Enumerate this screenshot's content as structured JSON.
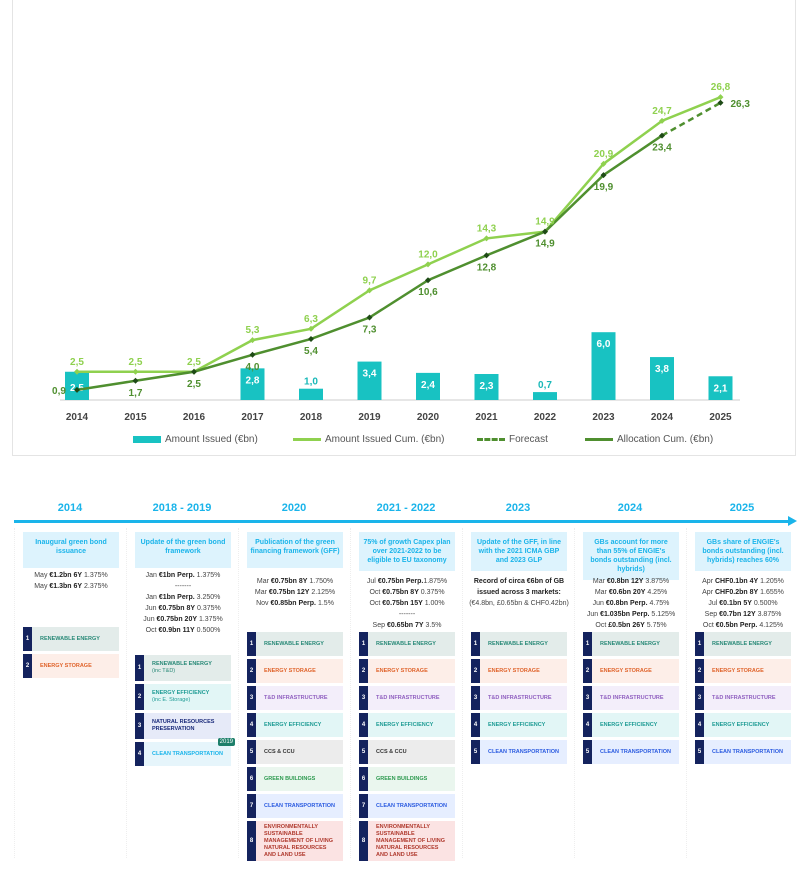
{
  "chart_data": {
    "type": "bar+line",
    "categories": [
      "2014",
      "2015",
      "2016",
      "2017",
      "2018",
      "2019",
      "2020",
      "2021",
      "2022",
      "2023",
      "2024",
      "2025"
    ],
    "series": [
      {
        "name": "Amount Issued (€bn)",
        "type": "bar",
        "color": "#18c2c2",
        "values": [
          2.5,
          null,
          null,
          2.8,
          1.0,
          3.4,
          2.4,
          2.3,
          0.7,
          6.0,
          3.8,
          2.1
        ],
        "labels": [
          "2,5",
          "",
          "",
          "2,8",
          "1,0",
          "3,4",
          "2,4",
          "2,3",
          "0,7",
          "6,0",
          "3,8",
          "2,1"
        ]
      },
      {
        "name": "Amount Issued Cum. (€bn)",
        "type": "line",
        "color": "#8fd14f",
        "values": [
          2.5,
          2.5,
          2.5,
          5.3,
          6.3,
          9.7,
          12.0,
          14.3,
          14.9,
          20.9,
          24.7,
          26.8
        ],
        "labels": [
          "2,5",
          "2,5",
          "2,5",
          "5,3",
          "6,3",
          "9,7",
          "12,0",
          "14,3",
          "14,9",
          "20,9",
          "24,7",
          "26,8"
        ]
      },
      {
        "name": "Forecast",
        "type": "line-dashed",
        "color": "#4f8f2f",
        "from": "2024",
        "to": "2025"
      },
      {
        "name": "Allocation Cum. (€bn)",
        "type": "line",
        "color": "#4f8f2f",
        "values": [
          0.9,
          1.7,
          2.5,
          4.0,
          5.4,
          7.3,
          10.6,
          12.8,
          14.9,
          19.9,
          23.4,
          26.3
        ],
        "labels": [
          "0,9",
          "1,7",
          "2,5",
          "4,0",
          "5,4",
          "7,3",
          "10,6",
          "12,8",
          "14,9",
          "19,9",
          "23,4",
          "26,3"
        ]
      }
    ],
    "ylim": [
      0,
      28
    ],
    "grid": false,
    "legend": "bottom"
  },
  "timeline": [
    {
      "year": "2014",
      "title": "Inaugural green bond issuance",
      "bonds": [
        [
          "May ",
          "€1.2bn 6Y",
          " 1.375%"
        ],
        [
          "May ",
          "€1.3bn 6Y",
          " 2.375%"
        ]
      ],
      "cats": [
        1,
        2
      ],
      "cats_top": 99
    },
    {
      "year": "2018 - 2019",
      "title": "Update of the green bond framework",
      "bonds": [
        [
          "Jan ",
          "€1bn Perp.",
          " 1.375%"
        ],
        [
          "",
          "",
          "-------"
        ],
        [
          "Jan ",
          "€1bn Perp.",
          " 3.250%"
        ],
        [
          "Jun ",
          "€0.75bn 8Y",
          " 0.375%"
        ],
        [
          "Jun ",
          "€0.75bn 20Y",
          " 1.375%"
        ],
        [
          "Oct ",
          "€0.9bn 11Y",
          " 0.500%"
        ]
      ],
      "cats": [
        "r1",
        "e2",
        "n3",
        "c4"
      ],
      "cats_top": 127,
      "badge": "2019"
    },
    {
      "year": "2020",
      "title": "Publication of the green financing framework (GFF)",
      "bonds": [
        [
          "Mar ",
          "€0.75bn 8Y",
          " 1.750%"
        ],
        [
          "Mar ",
          "€0.75bn 12Y",
          " 2.125%"
        ],
        [
          "Nov ",
          "€0.85bn Perp.",
          " 1.5%"
        ]
      ],
      "cats": [
        1,
        2,
        3,
        4,
        5,
        6,
        7,
        8
      ],
      "cats_top": 104
    },
    {
      "year": "2021 - 2022",
      "title": "75% of growth Capex plan over 2021-2022 to be eligible to EU taxonomy",
      "bonds": [
        [
          "Jul ",
          "€0.75bn Perp.",
          "1.875%"
        ],
        [
          "Oct ",
          "€0.75bn 8Y",
          " 0.375%"
        ],
        [
          "Oct ",
          "€0.75bn 15Y",
          " 1.00%"
        ],
        [
          "",
          "",
          "-------"
        ],
        [
          "Sep ",
          "€0.65bn 7Y",
          " 3.5%"
        ]
      ],
      "cats": [
        1,
        2,
        3,
        4,
        5,
        6,
        7,
        8
      ],
      "cats_top": 104
    },
    {
      "year": "2023",
      "title": "Update of the GFF, in line with the 2021 ICMA GBP and 2023 GLP",
      "bonds": [
        [
          "",
          "Record of circa €6bn of GB issued across 3 markets:",
          ""
        ],
        [
          "",
          "",
          "(€4.8bn, £0.65bn & CHF0.42bn)"
        ]
      ],
      "cats": [
        1,
        2,
        3,
        4,
        7
      ],
      "cats_top": 104
    },
    {
      "year": "2024",
      "title": "GBs account for more than 55% of ENGIE's bonds outstanding (incl. hybrids)",
      "bonds": [
        [
          "Mar ",
          "€0.8bn 12Y",
          " 3.875%"
        ],
        [
          "Mar ",
          "€0.6bn 20Y",
          " 4.25%"
        ],
        [
          "Jun ",
          "€0.8bn Perp.",
          " 4.75%"
        ],
        [
          "Jun ",
          "€1.035bn Perp.",
          " 5.125%"
        ],
        [
          "Oct ",
          "£0.5bn 26Y",
          " 5.75%"
        ]
      ],
      "cats": [
        1,
        2,
        3,
        4,
        7
      ],
      "cats_top": 104
    },
    {
      "year": "2025",
      "title": "GBs share of ENGIE's bonds outstanding (incl. hybrids) reaches 60%",
      "bonds": [
        [
          "Apr ",
          "CHF0.1bn 4Y",
          " 1.205%"
        ],
        [
          "Apr ",
          "CHF0.2bn 8Y",
          " 1.655%"
        ],
        [
          "Jul ",
          "€0.1bn 5Y",
          " 0.500%"
        ],
        [
          "Sep ",
          "€0.7bn 12Y",
          " 3.875%"
        ],
        [
          "Oct ",
          "€0.5bn Perp.",
          " 4.125%"
        ],
        [
          "Oct ",
          "€0.5bn Perp.",
          " 4.625%"
        ]
      ],
      "cats": [
        1,
        2,
        3,
        4,
        7
      ],
      "cats_top": 104
    }
  ],
  "categories": {
    "1": {
      "label": "RENEWABLE ENERGY",
      "bg": "#e3ecea",
      "fg": "#2a8a78"
    },
    "2": {
      "label": "ENERGY STORAGE",
      "bg": "#fdeee8",
      "fg": "#e0642c"
    },
    "3": {
      "label": "T&D INFRASTRUCTURE",
      "bg": "#f3eefa",
      "fg": "#9060c0"
    },
    "4": {
      "label": "ENERGY EFFICIENCY",
      "bg": "#e2f6f6",
      "fg": "#1f9c95"
    },
    "5": {
      "label": "CCS & CCU",
      "bg": "#ececec",
      "fg": "#333333"
    },
    "6": {
      "label": "GREEN BUILDINGS",
      "bg": "#eaf6ee",
      "fg": "#2e9a50"
    },
    "7": {
      "label": "CLEAN TRANSPORTATION",
      "bg": "#e6eeff",
      "fg": "#2b5be0"
    },
    "8": {
      "label": "ENVIRONMENTALLY SUSTAINABLE MANAGEMENT OF LIVING NATURAL RESOURCES AND LAND USE",
      "bg": "#fbe3e3",
      "fg": "#b03a2e"
    },
    "r1": {
      "label": "RENEWABLE ENERGY",
      "sub": "(inc T&D)",
      "bg": "#e3ecea",
      "fg": "#2a8a78",
      "n": "1"
    },
    "e2": {
      "label": "ENERGY EFFICIENCY",
      "sub": "(inc E. Storage)",
      "bg": "#e2f6f6",
      "fg": "#1f9c95",
      "n": "2"
    },
    "n3": {
      "label": "NATURAL RESOURCES PRESERVATION",
      "bg": "#e6eaf8",
      "fg": "#1a2a7a",
      "n": "3"
    },
    "c4": {
      "label": "CLEAN TRANSPORTATION",
      "bg": "#e6f5fb",
      "fg": "#1ab4ea",
      "n": "4"
    }
  },
  "cats_2014_override": {
    "2": {
      "label": "ENERGY EFFICIENCY",
      "bg": "#e2f6f6",
      "fg": "#1f9c95"
    }
  }
}
